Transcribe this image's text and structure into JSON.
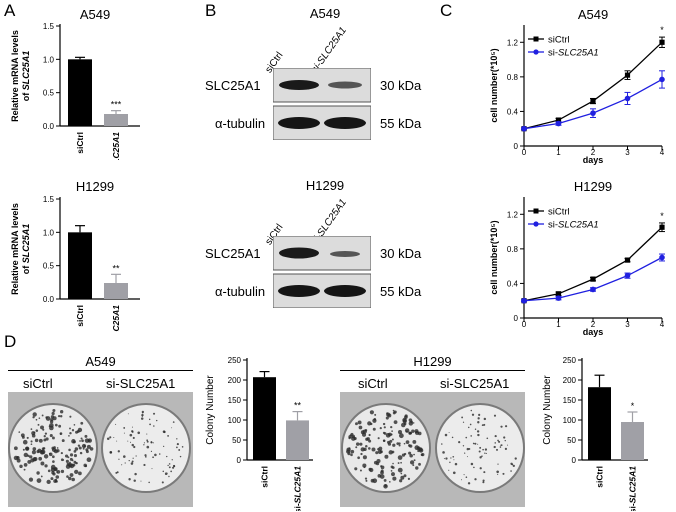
{
  "panels": {
    "A": {
      "letter": "A",
      "charts": [
        {
          "title": "A549",
          "ylabel_line1": "Relative mRNA levels",
          "ylabel_line2": "of SLC25A1",
          "y_ticks": [
            "0.0",
            "0.5",
            "1.0",
            "1.5"
          ],
          "categories": [
            "siCtrl",
            "si-SLC25A1"
          ],
          "values": [
            1.0,
            0.18
          ],
          "errors": [
            0.03,
            0.05
          ],
          "significance": "***",
          "ylim": [
            0,
            1.5
          ]
        },
        {
          "title": "H1299",
          "ylabel_line1": "Relative mRNA levels",
          "ylabel_line2": "of SLC25A1",
          "y_ticks": [
            "0.0",
            "0.5",
            "1.0",
            "1.5"
          ],
          "categories": [
            "siCtrl",
            "si-SLC25A1"
          ],
          "values": [
            1.0,
            0.24
          ],
          "errors": [
            0.1,
            0.13
          ],
          "significance": "**",
          "ylim": [
            0,
            1.5
          ]
        }
      ]
    },
    "B": {
      "letter": "B",
      "blots": [
        {
          "title": "A549",
          "lanes": [
            "siCtrl",
            "si-SLC25A1"
          ],
          "rows": [
            {
              "protein": "SLC25A1",
              "size": "30 kDa"
            },
            {
              "protein": "α-tubulin",
              "size": "55 kDa"
            }
          ]
        },
        {
          "title": "H1299",
          "lanes": [
            "siCtrl",
            "si-SLC25A1"
          ],
          "rows": [
            {
              "protein": "SLC25A1",
              "size": "30 kDa"
            },
            {
              "protein": "α-tubulin",
              "size": "55 kDa"
            }
          ]
        }
      ]
    },
    "C": {
      "letter": "C",
      "charts": [
        {
          "title": "A549",
          "ylabel": "cell number(*10⁵)",
          "xlabel": "days",
          "x_ticks": [
            "0",
            "1",
            "2",
            "3",
            "4"
          ],
          "y_ticks": [
            "0",
            "0.4",
            "0.8",
            "1.2"
          ],
          "series": [
            {
              "name": "siCtrl",
              "color": "#000000",
              "values": [
                0.2,
                0.3,
                0.52,
                0.82,
                1.2
              ],
              "errors": [
                0.01,
                0.02,
                0.03,
                0.05,
                0.06
              ]
            },
            {
              "name": "si-SLC25A1",
              "color": "#2020e0",
              "values": [
                0.2,
                0.26,
                0.38,
                0.55,
                0.77
              ],
              "errors": [
                0.01,
                0.02,
                0.05,
                0.07,
                0.1
              ]
            }
          ],
          "significance": "*",
          "ylim": [
            0,
            1.4
          ]
        },
        {
          "title": "H1299",
          "ylabel": "cell number(*10⁵)",
          "xlabel": "days",
          "x_ticks": [
            "0",
            "1",
            "2",
            "3",
            "4"
          ],
          "y_ticks": [
            "0",
            "0.4",
            "0.8",
            "1.2"
          ],
          "series": [
            {
              "name": "siCtrl",
              "color": "#000000",
              "values": [
                0.2,
                0.28,
                0.45,
                0.67,
                1.05
              ],
              "errors": [
                0.01,
                0.02,
                0.02,
                0.02,
                0.05
              ]
            },
            {
              "name": "si-SLC25A1",
              "color": "#2020e0",
              "values": [
                0.2,
                0.23,
                0.33,
                0.49,
                0.7
              ],
              "errors": [
                0.01,
                0.02,
                0.02,
                0.03,
                0.04
              ]
            }
          ],
          "significance": "*",
          "ylim": [
            0,
            1.4
          ]
        }
      ]
    },
    "D": {
      "letter": "D",
      "groups": [
        {
          "title": "A549",
          "plate_labels": [
            "siCtrl",
            "si-SLC25A1"
          ],
          "chart": {
            "ylabel": "Colony Number",
            "y_ticks": [
              "0",
              "50",
              "100",
              "150",
              "200",
              "250"
            ],
            "categories": [
              "siCtrl",
              "si-SLC25A1"
            ],
            "values": [
              207,
              99
            ],
            "errors": [
              14,
              22
            ],
            "significance": "**",
            "ylim": [
              0,
              250
            ]
          }
        },
        {
          "title": "H1299",
          "plate_labels": [
            "siCtrl",
            "si-SLC25A1"
          ],
          "chart": {
            "ylabel": "Colony Number",
            "y_ticks": [
              "0",
              "50",
              "100",
              "150",
              "200",
              "250"
            ],
            "categories": [
              "siCtrl",
              "si-SLC25A1"
            ],
            "values": [
              182,
              95
            ],
            "errors": [
              30,
              25
            ],
            "significance": "*",
            "ylim": [
              0,
              250
            ]
          }
        }
      ]
    }
  },
  "chart_data": [
    {
      "type": "bar",
      "title": "A549",
      "categories": [
        "siCtrl",
        "si-SLC25A1"
      ],
      "values": [
        1.0,
        0.18
      ],
      "ylabel": "Relative mRNA levels of SLC25A1",
      "ylim": [
        0,
        1.5
      ]
    },
    {
      "type": "bar",
      "title": "H1299",
      "categories": [
        "siCtrl",
        "si-SLC25A1"
      ],
      "values": [
        1.0,
        0.24
      ],
      "ylabel": "Relative mRNA levels of SLC25A1",
      "ylim": [
        0,
        1.5
      ]
    },
    {
      "type": "line",
      "title": "A549",
      "x": [
        0,
        1,
        2,
        3,
        4
      ],
      "series": [
        {
          "name": "siCtrl",
          "values": [
            0.2,
            0.3,
            0.52,
            0.82,
            1.2
          ]
        },
        {
          "name": "si-SLC25A1",
          "values": [
            0.2,
            0.26,
            0.38,
            0.55,
            0.77
          ]
        }
      ],
      "xlabel": "days",
      "ylabel": "cell number(*10⁵)",
      "ylim": [
        0,
        1.4
      ]
    },
    {
      "type": "line",
      "title": "H1299",
      "x": [
        0,
        1,
        2,
        3,
        4
      ],
      "series": [
        {
          "name": "siCtrl",
          "values": [
            0.2,
            0.28,
            0.45,
            0.67,
            1.05
          ]
        },
        {
          "name": "si-SLC25A1",
          "values": [
            0.2,
            0.23,
            0.33,
            0.49,
            0.7
          ]
        }
      ],
      "xlabel": "days",
      "ylabel": "cell number(*10⁵)",
      "ylim": [
        0,
        1.4
      ]
    },
    {
      "type": "bar",
      "categories": [
        "siCtrl",
        "si-SLC25A1"
      ],
      "values": [
        207,
        99
      ],
      "ylabel": "Colony Number",
      "ylim": [
        0,
        250
      ]
    },
    {
      "type": "bar",
      "categories": [
        "siCtrl",
        "si-SLC25A1"
      ],
      "values": [
        182,
        95
      ],
      "ylabel": "Colony Number",
      "ylim": [
        0,
        250
      ]
    }
  ]
}
